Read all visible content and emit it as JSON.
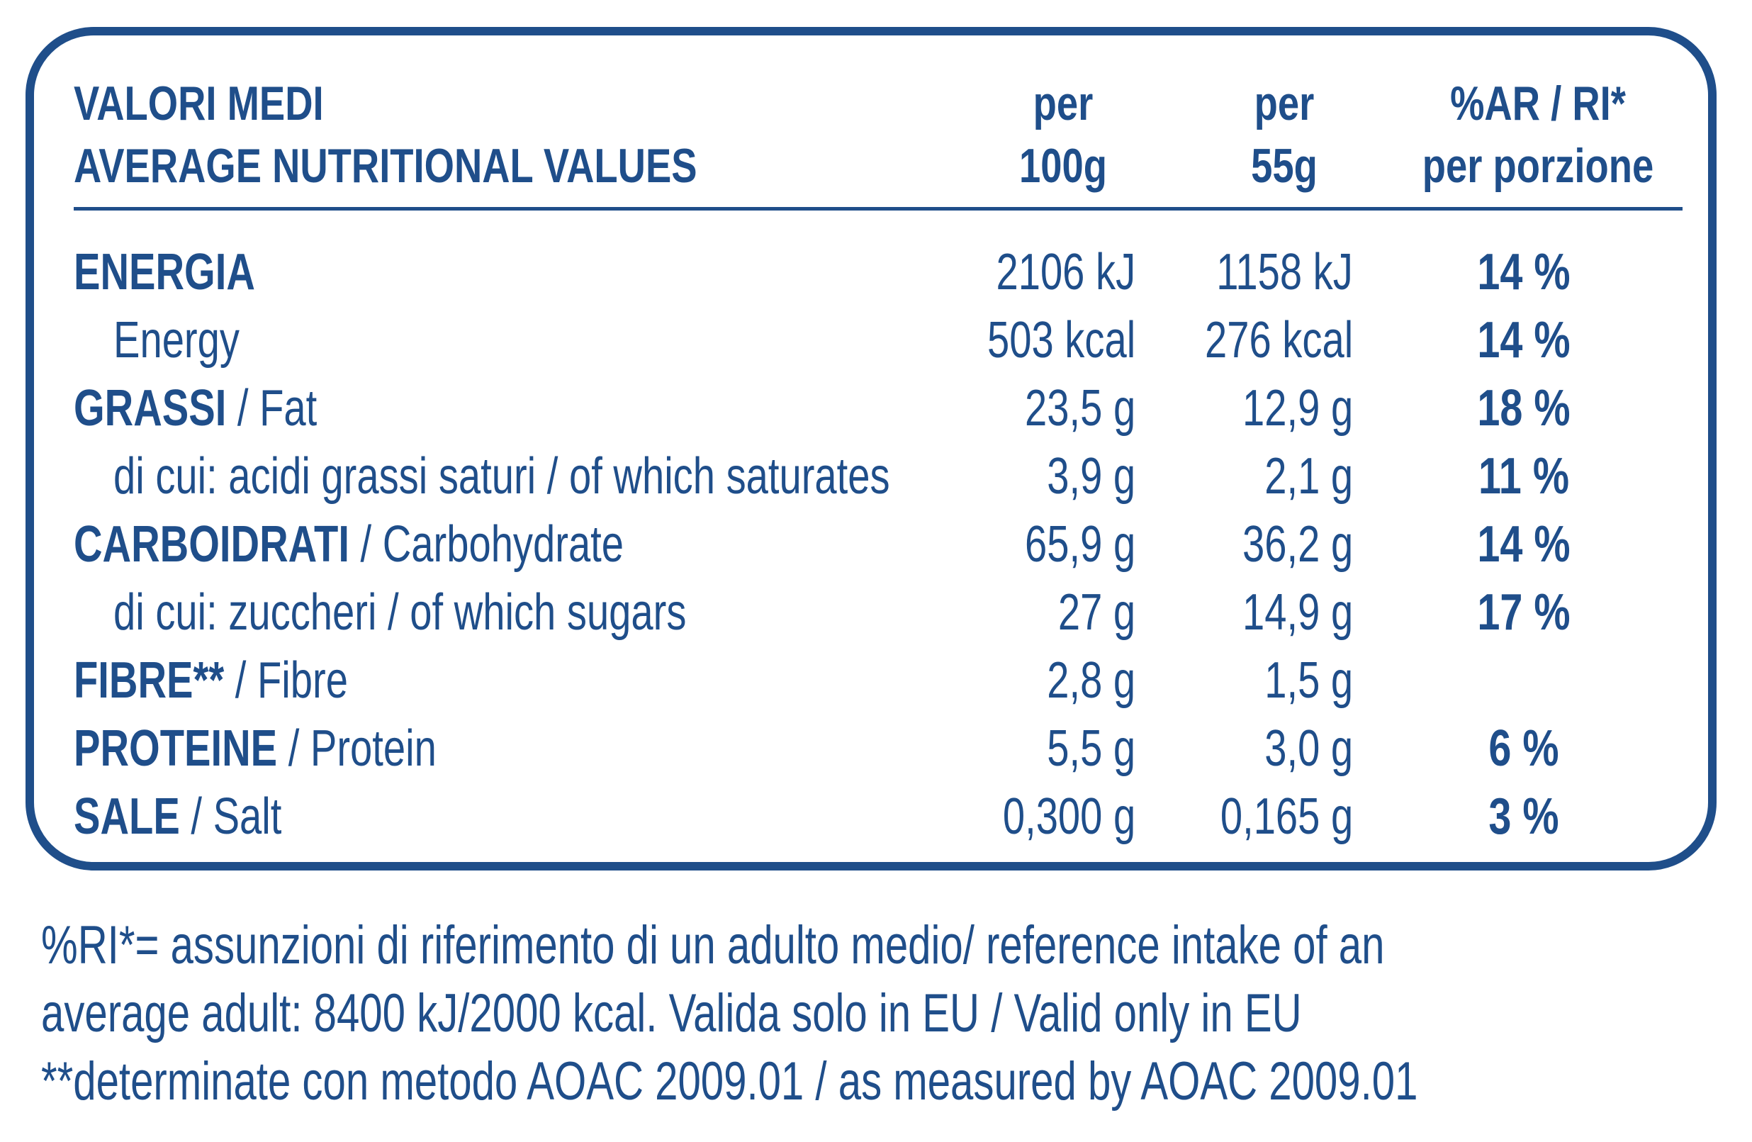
{
  "header": {
    "title_it": "VALORI MEDI",
    "title_en": "AVERAGE NUTRITIONAL VALUES",
    "col1_line1": "per",
    "col1_line2": "100g",
    "col2_line1": "per",
    "col2_line2": "55g",
    "col3_line1": "%AR / RI*",
    "col3_line2": "per porzione"
  },
  "rows": [
    {
      "label_bold": "ENERGIA",
      "label": "",
      "per100": "2106 kJ",
      "per55": "1158 kJ",
      "ri": "14 %"
    },
    {
      "label_bold": "",
      "label": "Energy",
      "per100": "503 kcal",
      "per55": "276 kcal",
      "ri": "14 %"
    },
    {
      "label_bold": "GRASSI",
      "label": " / Fat",
      "per100": "23,5 g",
      "per55": "12,9 g",
      "ri": "18 %"
    },
    {
      "label_bold": "",
      "label": "di cui: acidi grassi saturi / of which saturates",
      "per100": "3,9 g",
      "per55": "2,1 g",
      "ri": "11 %"
    },
    {
      "label_bold": "CARBOIDRATI",
      "label": " / Carbohydrate",
      "per100": "65,9 g",
      "per55": "36,2 g",
      "ri": "14 %"
    },
    {
      "label_bold": "",
      "label": "di cui: zuccheri / of which sugars",
      "per100": "27 g",
      "per55": "14,9 g",
      "ri": "17 %"
    },
    {
      "label_bold": "FIBRE**",
      "label": " / Fibre",
      "per100": "2,8 g",
      "per55": "1,5 g",
      "ri": ""
    },
    {
      "label_bold": "PROTEINE",
      "label": " / Protein",
      "per100": "5,5 g",
      "per55": "3,0 g",
      "ri": "6 %"
    },
    {
      "label_bold": "SALE",
      "label": " / Salt",
      "per100": "0,300 g",
      "per55": "0,165 g",
      "ri": "3 %"
    }
  ],
  "footnotes": {
    "line1": "%RI*= assunzioni di riferimento di un adulto medio/ reference intake of an",
    "line2": "average adult: 8400 kJ/2000 kcal. Valida solo in EU / Valid only in EU",
    "line3": "**determinate con metodo AOAC 2009.01 / as measured by  AOAC 2009.01"
  },
  "colors": {
    "brand_blue": "#1f4e8a"
  }
}
